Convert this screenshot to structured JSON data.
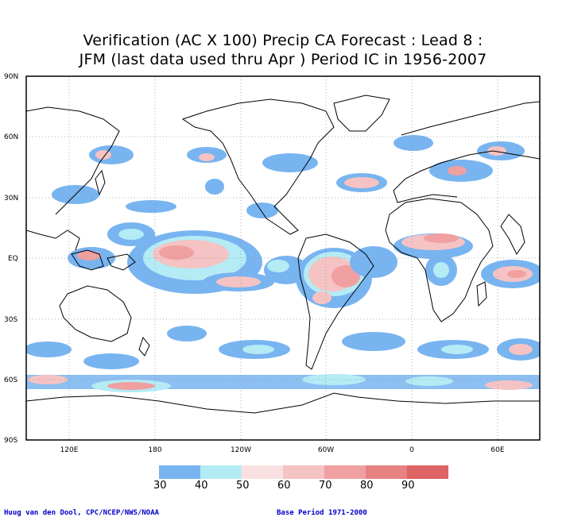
{
  "title_line1": "Verification (AC X 100) Precip CA Forecast : Lead 8 :",
  "title_line2": "JFM (last data used thru Apr ) Period IC in 1956-2007",
  "lat_labels": [
    "90N",
    "60N",
    "30N",
    "EQ",
    "30S",
    "60S",
    "90S"
  ],
  "lon_labels": [
    "120E",
    "180",
    "120W",
    "60W",
    "0",
    "60E"
  ],
  "colorbar": {
    "labels": [
      "30",
      "40",
      "50",
      "60",
      "70",
      "80",
      "90"
    ],
    "colors": [
      "#78b4f0",
      "#b4ebf5",
      "#fae1e1",
      "#f5c3c3",
      "#f0a0a0",
      "#e68282",
      "#dc6464"
    ]
  },
  "footer_left": "Huug van den Dool, CPC/NCEP/NWS/NOAA",
  "footer_right": "Base Period 1971-2000"
}
